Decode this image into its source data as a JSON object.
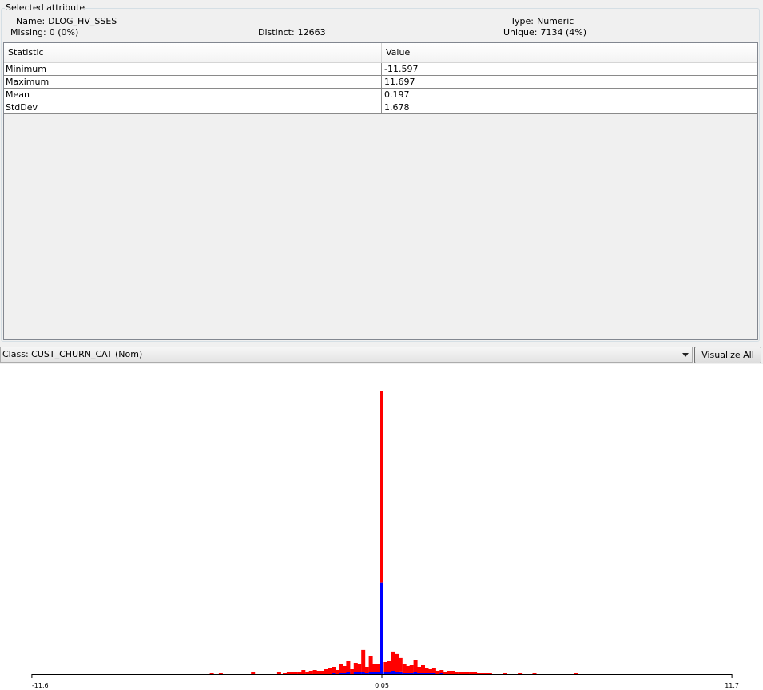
{
  "attribute_panel": {
    "legend": "Selected attribute",
    "name_label": "Name:",
    "name_value": "DLOG_HV_SSES",
    "type_label": "Type:",
    "type_value": "Numeric",
    "missing_label": "Missing:",
    "missing_value": "0 (0%)",
    "distinct_label": "Distinct:",
    "distinct_value": "12663",
    "unique_label": "Unique:",
    "unique_value": "7134 (4%)"
  },
  "stats_table": {
    "headers": [
      "Statistic",
      "Value"
    ],
    "rows": [
      {
        "statistic": "Minimum",
        "value": "-11.597"
      },
      {
        "statistic": "Maximum",
        "value": "11.697"
      },
      {
        "statistic": "Mean",
        "value": "0.197"
      },
      {
        "statistic": "StdDev",
        "value": "1.678"
      }
    ]
  },
  "class_selector": {
    "value": "Class: CUST_CHURN_CAT (Nom)"
  },
  "visualize_all_label": "Visualize All",
  "colors": {
    "class_a": "#ff0000",
    "class_b": "#0000ff"
  },
  "chart_data": {
    "type": "bar",
    "stacked": true,
    "x_min": -11.597,
    "x_max": 11.697,
    "tick_labels": [
      "-11.6",
      "0.05",
      "11.7"
    ],
    "tick_values": [
      -11.6,
      0.05,
      11.7
    ],
    "x": [
      -5.61,
      -5.31,
      -4.24,
      -3.37,
      -3.18,
      -3.05,
      -2.93,
      -2.81,
      -2.68,
      -2.56,
      -2.43,
      -2.31,
      -2.18,
      -2.06,
      -1.94,
      -1.81,
      -1.69,
      -1.56,
      -1.44,
      -1.32,
      -1.19,
      -1.07,
      -0.94,
      -0.82,
      -0.7,
      -0.57,
      -0.45,
      -0.32,
      -0.2,
      -0.07,
      0.05,
      0.18,
      0.3,
      0.42,
      0.55,
      0.67,
      0.8,
      0.92,
      1.04,
      1.17,
      1.29,
      1.42,
      1.54,
      1.66,
      1.79,
      1.91,
      2.04,
      2.16,
      2.28,
      2.41,
      2.53,
      2.66,
      2.78,
      2.9,
      3.03,
      3.15,
      3.28,
      3.4,
      3.52,
      3.65,
      4.14,
      4.64,
      5.13,
      6.5
    ],
    "series": [
      {
        "name": "",
        "color": "#ff0000",
        "values": [
          1,
          1,
          2,
          2,
          1,
          3,
          2,
          3,
          3,
          5,
          3,
          4,
          5,
          4,
          4,
          6,
          7,
          9,
          5,
          12,
          10,
          16,
          6,
          14,
          13,
          30,
          9,
          22,
          13,
          12,
          353,
          15,
          16,
          28,
          25,
          20,
          12,
          10,
          11,
          17,
          9,
          11,
          8,
          6,
          7,
          4,
          5,
          3,
          4,
          4,
          2,
          3,
          3,
          3,
          2,
          2,
          1,
          1,
          1,
          1,
          1,
          1,
          1,
          1
        ]
      },
      {
        "name": "",
        "color": "#0000ff",
        "values": [
          0,
          0,
          0,
          0,
          0,
          0,
          0,
          0,
          0,
          0,
          0,
          0,
          0,
          0,
          0,
          0,
          0,
          1,
          0,
          1,
          1,
          2,
          0,
          2,
          2,
          3,
          1,
          3,
          2,
          2,
          114,
          2,
          2,
          4,
          3,
          3,
          1,
          1,
          1,
          2,
          1,
          1,
          1,
          1,
          1,
          0,
          1,
          0,
          0,
          0,
          0,
          0,
          0,
          0,
          0,
          0,
          0,
          0,
          0,
          0,
          0,
          0,
          0,
          0
        ]
      }
    ]
  }
}
